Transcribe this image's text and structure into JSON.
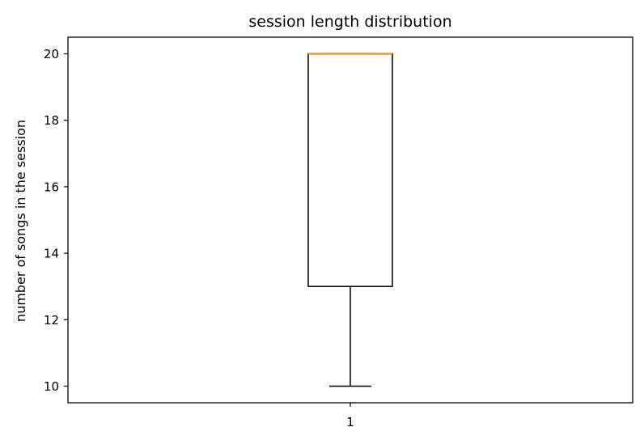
{
  "chart_data": {
    "type": "box",
    "title": "session length distribution",
    "xlabel": "",
    "ylabel": "number of songs in the session",
    "categories": [
      "1"
    ],
    "boxes": [
      {
        "category": "1",
        "whisker_low": 10,
        "q1": 13,
        "median": 20,
        "q3": 20,
        "whisker_high": 20
      }
    ],
    "ylim": [
      9.5,
      20.5
    ],
    "yticks": [
      10,
      12,
      14,
      16,
      18,
      20
    ],
    "ytick_labels": [
      "10",
      "12",
      "14",
      "16",
      "18",
      "20"
    ],
    "xtick_labels": [
      "1"
    ],
    "grid": false,
    "colors": {
      "box": "#000000",
      "median": "#ff7f0e"
    }
  }
}
